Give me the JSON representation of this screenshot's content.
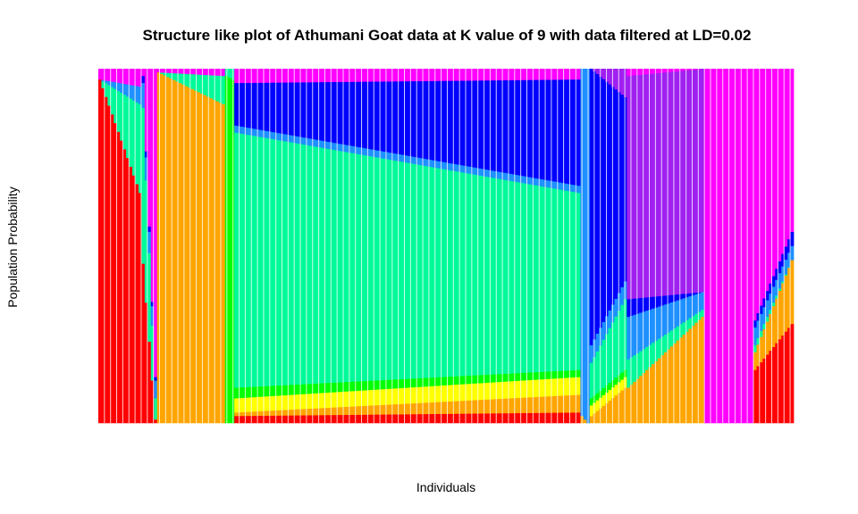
{
  "chart_data": {
    "type": "bar",
    "stacked": true,
    "title": "Structure like plot of Athumani Goat data at K value of 9 with data filtered at LD=0.02",
    "xlabel": "Individuals",
    "ylabel": "Population Probability",
    "ylim": [
      0,
      1
    ],
    "x_tick_labels": false,
    "y_tick_labels": false,
    "cluster_colors": [
      "#FF0000",
      "#FFA500",
      "#FFFF00",
      "#00FF00",
      "#00FA9A",
      "#1E90FF",
      "#0000FF",
      "#A020F0",
      "#FF00FF"
    ],
    "groups": [
      {
        "n": 14,
        "start": [
          0.97,
          0.0,
          0.0,
          0.0,
          0.0,
          0.0,
          0.0,
          0.0,
          0.03
        ],
        "end": [
          0.65,
          0.0,
          0.0,
          0.0,
          0.25,
          0.05,
          0.0,
          0.0,
          0.05
        ]
      },
      {
        "n": 5,
        "start": [
          0.45,
          0.0,
          0.0,
          0.0,
          0.44,
          0.07,
          0.02,
          0.0,
          0.02
        ],
        "end": [
          0.01,
          0.0,
          0.0,
          0.0,
          0.06,
          0.05,
          0.01,
          0.0,
          0.87
        ]
      },
      {
        "n": 22,
        "start": [
          0.0,
          0.99,
          0.0,
          0.0,
          0.0,
          0.0,
          0.0,
          0.0,
          0.01
        ],
        "end": [
          0.0,
          0.9,
          0.0,
          0.0,
          0.08,
          0.0,
          0.0,
          0.0,
          0.02
        ]
      },
      {
        "n": 3,
        "start": [
          0.0,
          0.0,
          0.0,
          0.98,
          0.02,
          0.0,
          0.0,
          0.0,
          0.0
        ],
        "end": [
          0.0,
          0.0,
          0.0,
          0.97,
          0.03,
          0.0,
          0.0,
          0.0,
          0.0
        ]
      },
      {
        "n": 112,
        "start": [
          0.02,
          0.01,
          0.04,
          0.03,
          0.72,
          0.02,
          0.12,
          0.0,
          0.04
        ],
        "end": [
          0.03,
          0.05,
          0.05,
          0.02,
          0.5,
          0.02,
          0.3,
          0.0,
          0.03
        ]
      },
      {
        "n": 3,
        "start": [
          0.0,
          0.02,
          0.0,
          0.0,
          0.0,
          0.98,
          0.0,
          0.0,
          0.0
        ],
        "end": [
          0.0,
          0.0,
          0.0,
          0.0,
          0.0,
          1.0,
          0.0,
          0.0,
          0.0
        ]
      },
      {
        "n": 12,
        "start": [
          0.0,
          0.02,
          0.03,
          0.02,
          0.1,
          0.05,
          0.78,
          0.0,
          0.0
        ],
        "end": [
          0.0,
          0.1,
          0.03,
          0.02,
          0.2,
          0.05,
          0.52,
          0.08,
          0.0
        ]
      },
      {
        "n": 25,
        "start": [
          0.0,
          0.1,
          0.0,
          0.0,
          0.08,
          0.12,
          0.05,
          0.63,
          0.02
        ],
        "end": [
          0.0,
          0.3,
          0.0,
          0.0,
          0.02,
          0.05,
          0.0,
          0.63,
          0.0
        ]
      },
      {
        "n": 16,
        "start": [
          0.0,
          0.0,
          0.0,
          0.0,
          0.0,
          0.0,
          0.0,
          0.0,
          1.0
        ],
        "end": [
          0.0,
          0.0,
          0.0,
          0.0,
          0.0,
          0.0,
          0.0,
          0.0,
          1.0
        ]
      },
      {
        "n": 13,
        "start": [
          0.15,
          0.05,
          0.0,
          0.0,
          0.02,
          0.05,
          0.02,
          0.0,
          0.71
        ],
        "end": [
          0.28,
          0.18,
          0.0,
          0.0,
          0.0,
          0.04,
          0.04,
          0.0,
          0.46
        ]
      }
    ]
  }
}
